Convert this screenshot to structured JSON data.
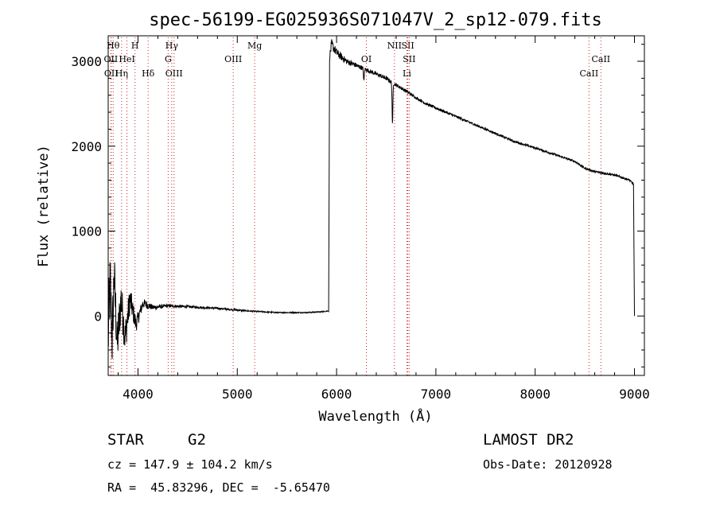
{
  "info": {
    "object_type": "STAR",
    "subclass": "G2",
    "cz": "cz = 147.9 ± 104.2 km/s",
    "radec": "RA =  45.83296, DEC =  -5.65470",
    "survey": "LAMOST DR2",
    "obs_date": "Obs-Date: 20120928"
  },
  "chart_data": {
    "type": "line",
    "title": "spec-56199-EG025936S071047V_2_sp12-079.fits",
    "xlabel": "Wavelength (Å)",
    "ylabel": "Flux (relative)",
    "xlim": [
      3700,
      9100
    ],
    "ylim": [
      -700,
      3300
    ],
    "xticks": [
      4000,
      5000,
      6000,
      7000,
      8000,
      9000
    ],
    "yticks": [
      0,
      1000,
      2000,
      3000
    ],
    "grid": false,
    "colors": {
      "spectrum": "#000000",
      "lines": "#d02020"
    },
    "spectrum_anchors": {
      "x": [
        3700,
        3720,
        3740,
        3760,
        3790,
        3830,
        3870,
        3920,
        3980,
        4050,
        4150,
        4300,
        4500,
        4800,
        5100,
        5400,
        5700,
        5850,
        5920,
        5930,
        5950,
        6000,
        6100,
        6200,
        6300,
        6400,
        6500,
        6560,
        6600,
        6700,
        6800,
        6900,
        7000,
        7200,
        7400,
        7600,
        7800,
        8000,
        8200,
        8400,
        8500,
        8600,
        8800,
        8950,
        8990,
        9000
      ],
      "y": [
        -250,
        400,
        -300,
        500,
        -350,
        200,
        -250,
        200,
        -100,
        150,
        100,
        120,
        110,
        90,
        60,
        40,
        40,
        50,
        60,
        3050,
        3200,
        3100,
        3000,
        2950,
        2900,
        2850,
        2800,
        2750,
        2720,
        2650,
        2570,
        2500,
        2450,
        2350,
        2250,
        2150,
        2050,
        1980,
        1900,
        1820,
        1740,
        1700,
        1660,
        1600,
        1550,
        0
      ],
      "noise": [
        500,
        400,
        350,
        330,
        300,
        250,
        220,
        160,
        90,
        60,
        30,
        20,
        15,
        12,
        8,
        6,
        6,
        6,
        6,
        40,
        60,
        50,
        35,
        30,
        25,
        25,
        25,
        20,
        20,
        20,
        15,
        15,
        15,
        15,
        12,
        12,
        12,
        12,
        12,
        12,
        12,
        12,
        12,
        12,
        12,
        0
      ]
    },
    "absorption": [
      {
        "x": 6563,
        "depth": 500
      },
      {
        "x": 6275,
        "depth": 150
      }
    ],
    "lines": [
      {
        "label": "Hθ",
        "x": 3750,
        "row": 0
      },
      {
        "label": "H",
        "x": 3970,
        "row": 0
      },
      {
        "label": "Hγ",
        "x": 4340,
        "row": 0
      },
      {
        "label": "Mg",
        "x": 5175,
        "row": 0
      },
      {
        "label": "NII",
        "x": 6583,
        "row": 0
      },
      {
        "label": "SII",
        "x": 6717,
        "row": 0
      },
      {
        "label": "OII",
        "x": 3727,
        "row": 1
      },
      {
        "label": "HeI",
        "x": 3889,
        "row": 1
      },
      {
        "label": "G",
        "x": 4304,
        "row": 1
      },
      {
        "label": "OIII",
        "x": 4959,
        "row": 1
      },
      {
        "label": "OI",
        "x": 6300,
        "row": 1
      },
      {
        "label": "SII",
        "x": 6731,
        "row": 1
      },
      {
        "label": "CaII",
        "x": 8662,
        "row": 1
      },
      {
        "label": "OII",
        "x": 3730,
        "row": 2
      },
      {
        "label": "Hη",
        "x": 3835,
        "row": 2
      },
      {
        "label": "Hδ",
        "x": 4102,
        "row": 2
      },
      {
        "label": "OIII",
        "x": 4363,
        "row": 2
      },
      {
        "label": "Li",
        "x": 6708,
        "row": 2
      },
      {
        "label": "CaII",
        "x": 8542,
        "row": 2
      }
    ]
  }
}
